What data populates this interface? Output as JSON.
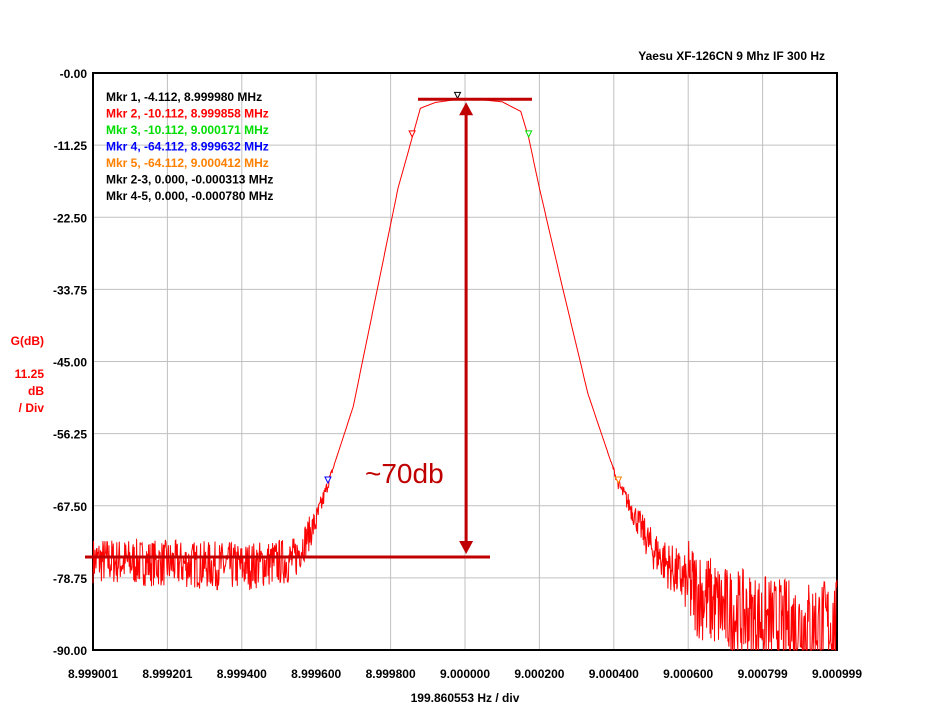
{
  "chart_data": {
    "type": "line",
    "title": "Yaesu XF-126CN 9 Mhz IF 300 Hz",
    "xlabel": "199.860553 Hz / div",
    "ylabel": [
      "G(dB)",
      "11.25",
      "dB",
      "/ Div"
    ],
    "xlim": [
      8.999001,
      9.000999
    ],
    "ylim": [
      -90,
      0
    ],
    "grid": true,
    "x_ticks": [
      "8.999001",
      "8.999201",
      "8.999400",
      "8.999600",
      "8.999800",
      "9.000000",
      "9.000200",
      "9.000400",
      "9.000600",
      "9.000799",
      "9.000999"
    ],
    "y_ticks": [
      "-0.00",
      "-11.25",
      "-22.50",
      "-33.75",
      "-45.00",
      "-56.25",
      "-67.50",
      "-78.75",
      "-90.00"
    ],
    "series": [
      {
        "name": "G(dB)",
        "color": "#ff0000",
        "x": [
          8.999001,
          8.9992,
          8.9994,
          8.99954,
          8.9996,
          8.999632,
          8.9997,
          8.99976,
          8.99982,
          8.999858,
          8.99988,
          8.99992,
          8.99998,
          9.00005,
          9.0001,
          9.00015,
          9.000171,
          9.0002,
          9.00026,
          9.00033,
          9.000412,
          9.0005,
          9.0006,
          9.0007,
          9.00085,
          9.000999
        ],
        "y": [
          -76,
          -76.5,
          -77,
          -76,
          -70,
          -64.1,
          -52,
          -35,
          -18,
          -10.1,
          -5.5,
          -4.6,
          -4.1,
          -4.2,
          -4.5,
          -6,
          -10.1,
          -18,
          -33,
          -50,
          -64.1,
          -74,
          -80,
          -84,
          -86,
          -86
        ]
      }
    ],
    "markers": [
      {
        "label": "Mkr 1, -4.112, 8.999980 MHz",
        "x": 8.99998,
        "y": -4.112,
        "color": "#000000"
      },
      {
        "label": "Mkr 2, -10.112, 8.999858 MHz",
        "x": 8.999858,
        "y": -10.112,
        "color": "#ff0000"
      },
      {
        "label": "Mkr 3, -10.112, 9.000171 MHz",
        "x": 9.000171,
        "y": -10.112,
        "color": "#00dd00"
      },
      {
        "label": "Mkr 4, -64.112, 8.999632 MHz",
        "x": 8.999632,
        "y": -64.112,
        "color": "#0000ff"
      },
      {
        "label": "Mkr 5, -64.112, 9.000412 MHz",
        "x": 9.000412,
        "y": -64.112,
        "color": "#ff8000"
      }
    ],
    "delta_markers": [
      {
        "label": "Mkr 2-3, 0.000, -0.000313 MHz",
        "color": "#000000"
      },
      {
        "label": "Mkr 4-5, 0.000, -0.000780 MHz",
        "color": "#000000"
      }
    ],
    "annotation": {
      "text": "~70db",
      "color": "#c00000",
      "top_db": -4.1,
      "bottom_db": -75.5,
      "x": 9.000003
    }
  }
}
